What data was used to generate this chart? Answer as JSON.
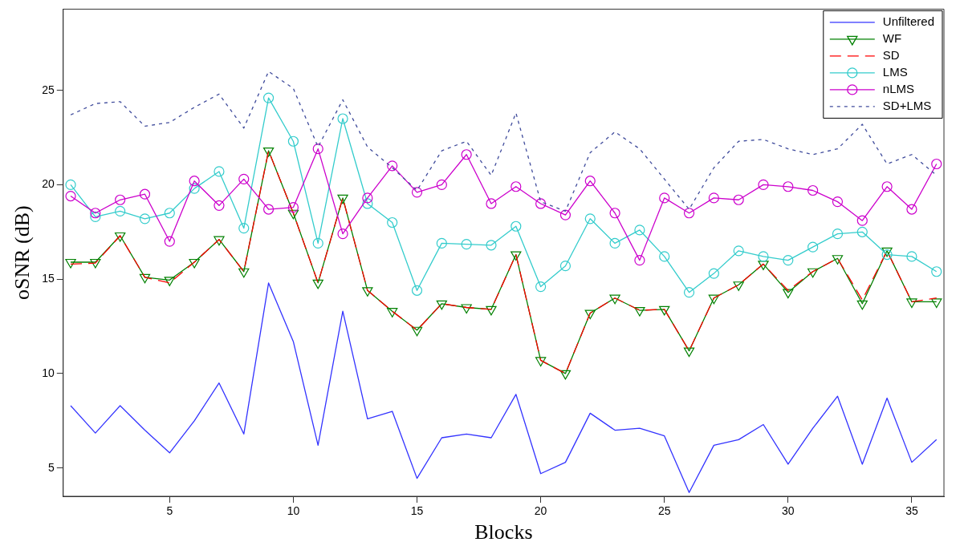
{
  "chart_data": {
    "type": "line",
    "xlabel": "Blocks",
    "ylabel": "oSNR (dB)",
    "x": [
      1,
      2,
      3,
      4,
      5,
      6,
      7,
      8,
      9,
      10,
      11,
      12,
      13,
      14,
      15,
      16,
      17,
      18,
      19,
      20,
      21,
      22,
      23,
      24,
      25,
      26,
      27,
      28,
      29,
      30,
      31,
      32,
      33,
      34,
      35,
      36
    ],
    "xlim": [
      0.7,
      36.3
    ],
    "xticks": [
      5,
      10,
      15,
      20,
      25,
      30,
      35
    ],
    "ylim": [
      3.5,
      29.3
    ],
    "yticks": [
      5,
      10,
      15,
      20,
      25
    ],
    "grid": false,
    "legend": "top right",
    "series": [
      {
        "name": "Unfiltered",
        "color": "#3333ff",
        "marker": "none",
        "line_style": "solid",
        "values": [
          8.3,
          6.85,
          8.3,
          7.0,
          5.8,
          7.5,
          9.5,
          6.8,
          14.8,
          11.7,
          6.2,
          13.3,
          7.6,
          8.0,
          4.45,
          6.6,
          6.8,
          6.6,
          8.9,
          4.7,
          5.3,
          7.9,
          7.0,
          7.1,
          6.7,
          3.7,
          6.2,
          6.5,
          7.3,
          5.2,
          7.1,
          8.8,
          5.2,
          8.7,
          5.3,
          6.5
        ]
      },
      {
        "name": "WF",
        "color": "#008000",
        "marker": "triangle",
        "line_style": "solid",
        "values": [
          15.9,
          15.9,
          17.3,
          15.1,
          14.95,
          15.9,
          17.1,
          15.4,
          21.8,
          18.5,
          14.8,
          19.3,
          14.4,
          13.3,
          12.3,
          13.7,
          13.5,
          13.4,
          16.3,
          10.7,
          10.0,
          13.2,
          14.0,
          13.35,
          13.4,
          11.2,
          14.0,
          14.7,
          15.8,
          14.3,
          15.4,
          16.1,
          13.7,
          16.5,
          13.8,
          13.8
        ]
      },
      {
        "name": "SD",
        "color": "#ff0000",
        "marker": "none",
        "line_style": "dashed",
        "values": [
          15.8,
          15.85,
          17.3,
          15.1,
          14.8,
          15.9,
          17.1,
          15.4,
          21.8,
          18.5,
          14.8,
          19.3,
          14.4,
          13.3,
          12.3,
          13.7,
          13.5,
          13.4,
          16.3,
          10.7,
          10.0,
          13.2,
          14.0,
          13.35,
          13.4,
          11.2,
          14.0,
          14.7,
          15.8,
          14.4,
          15.4,
          16.1,
          13.9,
          16.5,
          13.8,
          14.0
        ]
      },
      {
        "name": "LMS",
        "color": "#33cccc",
        "marker": "circle",
        "line_style": "solid",
        "values": [
          20.0,
          18.3,
          18.6,
          18.2,
          18.5,
          19.8,
          20.7,
          17.7,
          24.6,
          22.3,
          16.9,
          23.5,
          19.0,
          18.0,
          14.4,
          16.9,
          16.85,
          16.8,
          17.8,
          14.6,
          15.7,
          18.2,
          16.9,
          17.6,
          16.2,
          14.3,
          15.3,
          16.5,
          16.2,
          16.0,
          16.7,
          17.4,
          17.5,
          16.3,
          16.2,
          15.4
        ]
      },
      {
        "name": "nLMS",
        "color": "#cc00cc",
        "marker": "circle",
        "line_style": "solid",
        "values": [
          19.4,
          18.5,
          19.2,
          19.5,
          17.0,
          20.2,
          18.9,
          20.3,
          18.7,
          18.8,
          21.9,
          17.4,
          19.3,
          21.0,
          19.6,
          20.0,
          21.6,
          19.0,
          19.9,
          19.0,
          18.4,
          20.2,
          18.5,
          16.0,
          19.3,
          18.5,
          19.3,
          19.2,
          20.0,
          19.9,
          19.7,
          19.1,
          18.1,
          19.9,
          18.7,
          21.1
        ]
      },
      {
        "name": "SD+LMS",
        "color": "#404c9c",
        "marker": "none",
        "line_style": "dotted",
        "values": [
          23.7,
          24.3,
          24.4,
          23.1,
          23.3,
          24.1,
          24.8,
          23.0,
          26.0,
          25.1,
          22.0,
          24.5,
          22.0,
          20.9,
          19.7,
          21.8,
          22.3,
          20.5,
          23.8,
          19.1,
          18.6,
          21.7,
          22.8,
          21.9,
          20.3,
          18.7,
          20.9,
          22.3,
          22.4,
          21.9,
          21.6,
          21.9,
          23.2,
          21.1,
          21.6,
          20.5
        ]
      }
    ]
  }
}
